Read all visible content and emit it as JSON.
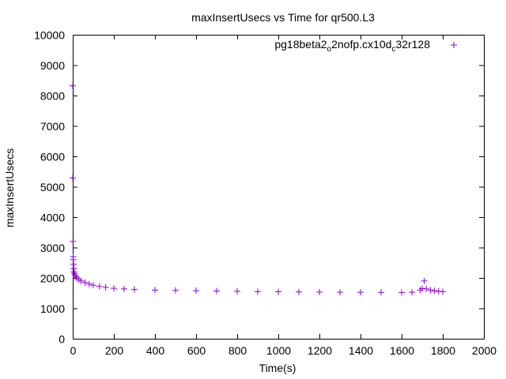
{
  "chart_data": {
    "type": "scatter",
    "title": "maxInsertUsecs vs Time for qr500.L3",
    "xlabel": "Time(s)",
    "ylabel": "maxInsertUsecs",
    "xlim": [
      0,
      2000
    ],
    "ylim": [
      0,
      10000
    ],
    "x_ticks": [
      "0",
      "200",
      "400",
      "600",
      "800",
      "1000",
      "1200",
      "1400",
      "1600",
      "1800",
      "2000"
    ],
    "y_ticks": [
      "0",
      "1000",
      "2000",
      "3000",
      "4000",
      "5000",
      "6000",
      "7000",
      "8000",
      "9000",
      "10000"
    ],
    "grid": false,
    "legend_position": "top-right",
    "marker": "plus",
    "color": "#9400d3",
    "series": [
      {
        "name_parts": [
          "pg18beta2",
          "o",
          "2nofp.cx10d",
          "c",
          "32r128"
        ],
        "points": [
          [
            0,
            8320
          ],
          [
            0,
            5290
          ],
          [
            1,
            3200
          ],
          [
            2,
            2700
          ],
          [
            3,
            2600
          ],
          [
            4,
            2450
          ],
          [
            5,
            2300
          ],
          [
            6,
            2200
          ],
          [
            8,
            2150
          ],
          [
            10,
            2100
          ],
          [
            15,
            2050
          ],
          [
            20,
            2000
          ],
          [
            30,
            1950
          ],
          [
            40,
            1900
          ],
          [
            60,
            1850
          ],
          [
            80,
            1800
          ],
          [
            100,
            1760
          ],
          [
            130,
            1720
          ],
          [
            160,
            1690
          ],
          [
            200,
            1660
          ],
          [
            250,
            1640
          ],
          [
            300,
            1620
          ],
          [
            400,
            1600
          ],
          [
            500,
            1590
          ],
          [
            600,
            1580
          ],
          [
            700,
            1570
          ],
          [
            800,
            1560
          ],
          [
            900,
            1550
          ],
          [
            1000,
            1545
          ],
          [
            1100,
            1540
          ],
          [
            1200,
            1535
          ],
          [
            1300,
            1530
          ],
          [
            1400,
            1530
          ],
          [
            1500,
            1525
          ],
          [
            1600,
            1520
          ],
          [
            1650,
            1530
          ],
          [
            1690,
            1600
          ],
          [
            1700,
            1650
          ],
          [
            1710,
            1900
          ],
          [
            1720,
            1640
          ],
          [
            1740,
            1600
          ],
          [
            1760,
            1580
          ],
          [
            1780,
            1560
          ],
          [
            1800,
            1550
          ]
        ]
      }
    ]
  }
}
